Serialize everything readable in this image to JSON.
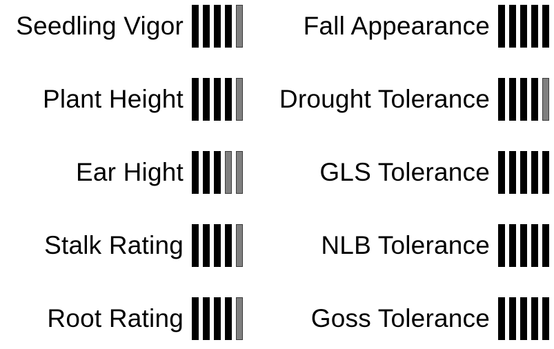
{
  "colors": {
    "filled": "#000000",
    "partial": "#7f7f7f"
  },
  "bar_count": 5,
  "ratings": {
    "left": [
      {
        "label": "Seedling Vigor",
        "score": 4.5
      },
      {
        "label": "Plant Height",
        "score": 4.5
      },
      {
        "label": "Ear Hight",
        "score": 3.0
      },
      {
        "label": "Stalk Rating",
        "score": 4.5
      },
      {
        "label": "Root Rating",
        "score": 4.5
      }
    ],
    "right": [
      {
        "label": "Fall Appearance",
        "score": 5.0
      },
      {
        "label": "Drought Tolerance",
        "score": 4.5
      },
      {
        "label": "GLS Tolerance",
        "score": 5.0
      },
      {
        "label": "NLB Tolerance",
        "score": 5.0
      },
      {
        "label": "Goss Tolerance",
        "score": 5.0
      }
    ]
  }
}
